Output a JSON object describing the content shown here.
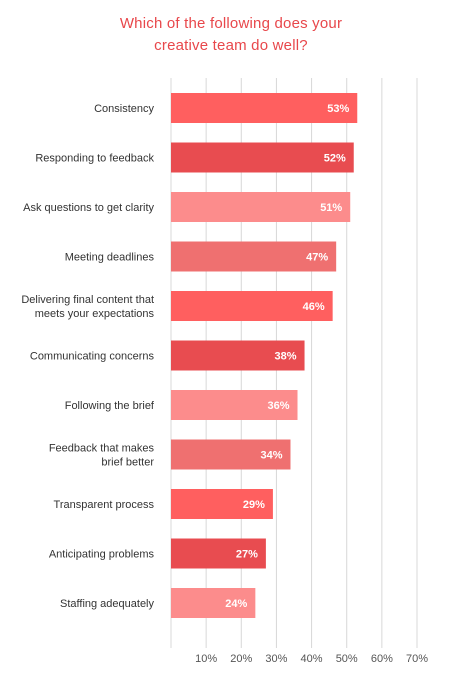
{
  "chart_data": {
    "type": "bar",
    "orientation": "horizontal",
    "title_lines": [
      "Which of the following does your",
      "creative team do well?"
    ],
    "categories": [
      [
        "Consistency"
      ],
      [
        "Responding to feedback"
      ],
      [
        "Ask questions to get clarity"
      ],
      [
        "Meeting deadlines"
      ],
      [
        "Delivering final content that",
        "meets your expectations"
      ],
      [
        "Communicating concerns"
      ],
      [
        "Following the brief"
      ],
      [
        "Feedback that makes",
        "brief better"
      ],
      [
        "Transparent process"
      ],
      [
        "Anticipating problems"
      ],
      [
        "Staffing adequately"
      ]
    ],
    "values": [
      53,
      52,
      51,
      47,
      46,
      38,
      36,
      34,
      29,
      27,
      24
    ],
    "value_labels": [
      "53%",
      "52%",
      "51%",
      "47%",
      "46%",
      "38%",
      "36%",
      "34%",
      "29%",
      "27%",
      "24%"
    ],
    "bar_colors": [
      "#ff5f5f",
      "#e84c50",
      "#fc8c8c",
      "#ef7070",
      "#ff5f5f",
      "#e84c50",
      "#fc8c8c",
      "#ef7070",
      "#ff5f5f",
      "#e84c50",
      "#fc8c8c"
    ],
    "xlim": [
      0,
      70
    ],
    "xticks": [
      10,
      20,
      30,
      40,
      50,
      60,
      70
    ],
    "xtick_labels": [
      "10%",
      "20%",
      "30%",
      "40%",
      "50%",
      "60%",
      "70%"
    ],
    "grid": true,
    "colors": {
      "title": "#e8474b",
      "category_text": "#333333",
      "tick_text": "#555555",
      "value_text": "#ffffff",
      "grid": "#d8d8d8"
    }
  }
}
